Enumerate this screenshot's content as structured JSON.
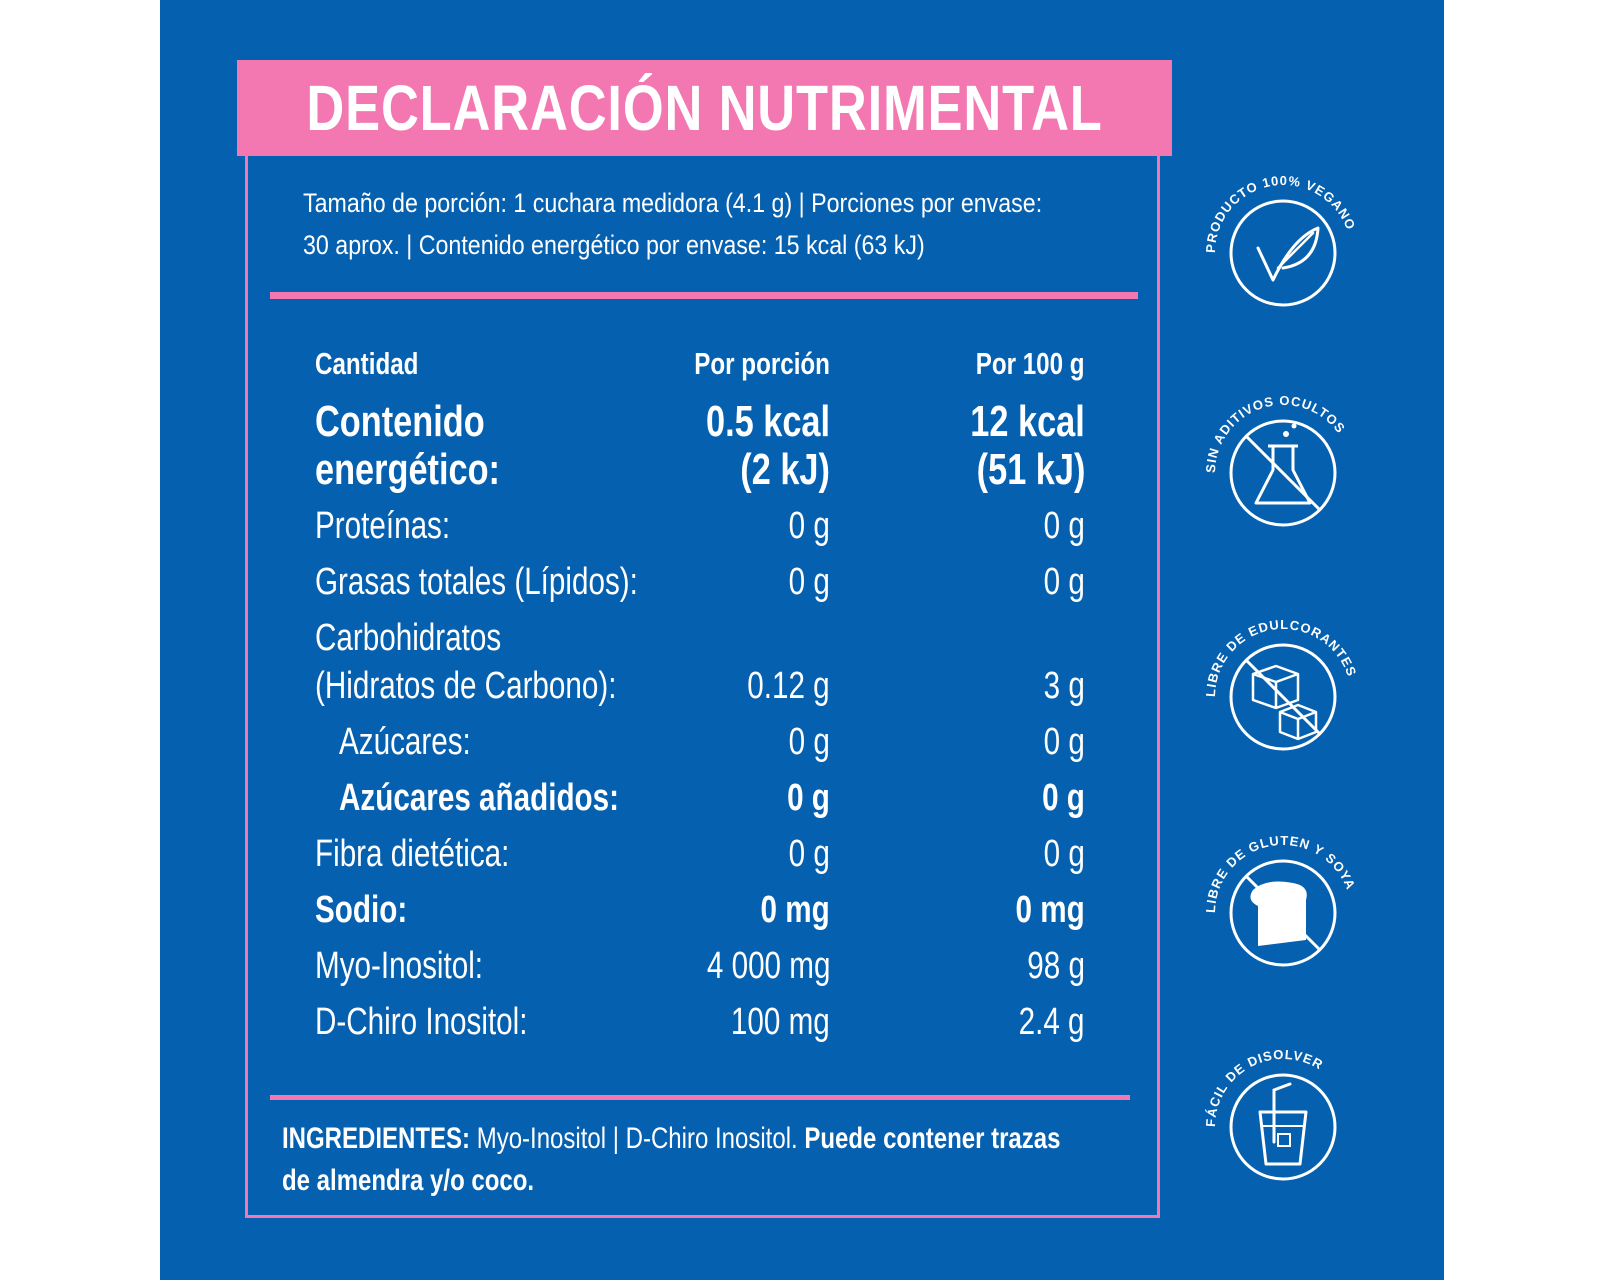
{
  "title": "DECLARACIÓN NUTRIMENTAL",
  "serving": {
    "line1": "Tamaño de porción: 1 cuchara medidora (4.1 g) | Porciones por envase:",
    "line2": "30 aprox. | Contenido energético por envase: 15 kcal (63 kJ)"
  },
  "table": {
    "headers": {
      "label": "Cantidad",
      "per_portion": "Por porción",
      "per_100g": "Por 100 g"
    },
    "rows": [
      {
        "label1": "Contenido",
        "label2": "energético:",
        "por1": "0.5 kcal",
        "por2": "(2 kJ)",
        "p1001": "12 kcal",
        "p1002": "(51 kJ)"
      },
      {
        "label": "Proteínas:",
        "por": "0 g",
        "p100": "0 g"
      },
      {
        "label": "Grasas totales (Lípidos):",
        "por": "0 g",
        "p100": "0 g"
      },
      {
        "label1": "Carbohidratos",
        "label2": "(Hidratos de Carbono):",
        "por": "0.12 g",
        "p100": "3 g"
      },
      {
        "label": "Azúcares:",
        "por": "0 g",
        "p100": "0 g"
      },
      {
        "label": "Azúcares añadidos:",
        "por": "0 g",
        "p100": "0 g"
      },
      {
        "label": "Fibra dietética:",
        "por": "0 g",
        "p100": "0 g"
      },
      {
        "label": "Sodio:",
        "por": "0 mg",
        "p100": "0 mg"
      },
      {
        "label": "Myo-Inositol:",
        "por": "4 000 mg",
        "p100": "98 g"
      },
      {
        "label": "D-Chiro Inositol:",
        "por": "100 mg",
        "p100": "2.4 g"
      }
    ]
  },
  "ingredients": {
    "label": "INGREDIENTES:",
    "list": "Myo-Inositol | D-Chiro Inositol.",
    "warning": "Puede contener trazas de almendra y/o coco."
  },
  "badges": [
    {
      "text": "PRODUCTO 100% VEGANO",
      "icon": "vegan-leaf-icon"
    },
    {
      "text": "SIN ADITIVOS OCULTOS",
      "icon": "flask-icon"
    },
    {
      "text": "LIBRE DE EDULCORANTES",
      "icon": "sugar-cubes-icon"
    },
    {
      "text": "LIBRE DE GLUTEN Y SOYA",
      "icon": "bread-icon"
    },
    {
      "text": "FÁCIL DE DISOLVER",
      "icon": "glass-straw-icon"
    }
  ],
  "colors": {
    "background": "#0660b0",
    "accent": "#f378b2",
    "text": "#ffffff"
  }
}
